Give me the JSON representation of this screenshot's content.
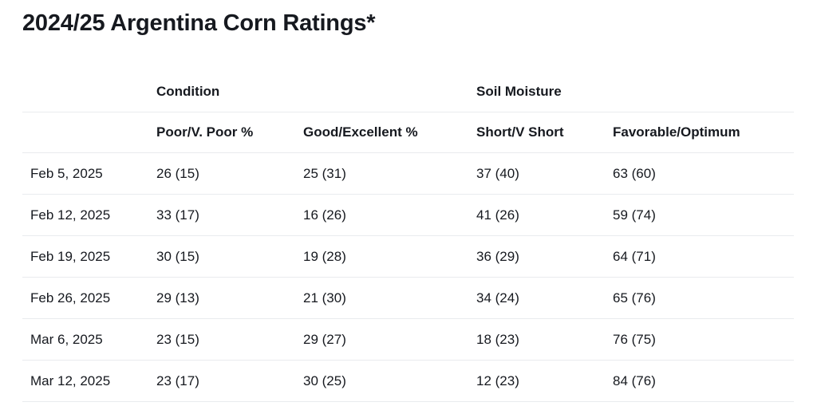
{
  "page": {
    "title": "2024/25 Argentina Corn Ratings*"
  },
  "table": {
    "group_headers": {
      "spacer": "",
      "condition": "Condition",
      "soil_moisture": "Soil Moisture"
    },
    "column_headers": [
      "",
      "Poor/V. Poor %",
      "Good/Excellent %",
      "Short/V Short",
      "Favorable/Optimum"
    ],
    "rows": [
      {
        "date": "Feb 5, 2025",
        "poor_v_poor": "26 (15)",
        "good_excellent": "25 (31)",
        "short_v_short": "37 (40)",
        "favorable_optimum": "63 (60)"
      },
      {
        "date": "Feb 12, 2025",
        "poor_v_poor": "33 (17)",
        "good_excellent": "16 (26)",
        "short_v_short": "41 (26)",
        "favorable_optimum": "59 (74)"
      },
      {
        "date": "Feb 19, 2025",
        "poor_v_poor": "30 (15)",
        "good_excellent": "19 (28)",
        "short_v_short": "36 (29)",
        "favorable_optimum": "64 (71)"
      },
      {
        "date": "Feb 26, 2025",
        "poor_v_poor": "29 (13)",
        "good_excellent": "21 (30)",
        "short_v_short": "34 (24)",
        "favorable_optimum": "65 (76)"
      },
      {
        "date": "Mar 6, 2025",
        "poor_v_poor": "23 (15)",
        "good_excellent": "29 (27)",
        "short_v_short": "18 (23)",
        "favorable_optimum": "76 (75)"
      },
      {
        "date": "Mar 12, 2025",
        "poor_v_poor": "23 (17)",
        "good_excellent": "30 (25)",
        "short_v_short": "12 (23)",
        "favorable_optimum": "84 (76)"
      }
    ]
  },
  "chart_data": {
    "type": "table",
    "title": "2024/25 Argentina Corn Ratings*",
    "column_groups": [
      {
        "label": "Condition",
        "columns": [
          "Poor/V. Poor %",
          "Good/Excellent %"
        ]
      },
      {
        "label": "Soil Moisture",
        "columns": [
          "Short/V Short",
          "Favorable/Optimum"
        ]
      }
    ],
    "categories": [
      "Feb 5, 2025",
      "Feb 12, 2025",
      "Feb 19, 2025",
      "Feb 26, 2025",
      "Mar 6, 2025",
      "Mar 12, 2025"
    ],
    "series": [
      {
        "name": "Poor/V. Poor %",
        "values": [
          26,
          33,
          30,
          29,
          23,
          23
        ],
        "parenthetical_values": [
          15,
          17,
          15,
          13,
          15,
          17
        ]
      },
      {
        "name": "Good/Excellent %",
        "values": [
          25,
          16,
          19,
          21,
          29,
          30
        ],
        "parenthetical_values": [
          31,
          26,
          28,
          30,
          27,
          25
        ]
      },
      {
        "name": "Short/V Short",
        "values": [
          37,
          41,
          36,
          34,
          18,
          12
        ],
        "parenthetical_values": [
          40,
          26,
          29,
          24,
          23,
          23
        ]
      },
      {
        "name": "Favorable/Optimum",
        "values": [
          63,
          59,
          64,
          65,
          76,
          84
        ],
        "parenthetical_values": [
          60,
          74,
          71,
          76,
          75,
          76
        ]
      }
    ]
  },
  "colors": {
    "text": "#16191f",
    "divider": "#e9ebee",
    "background": "#ffffff"
  }
}
